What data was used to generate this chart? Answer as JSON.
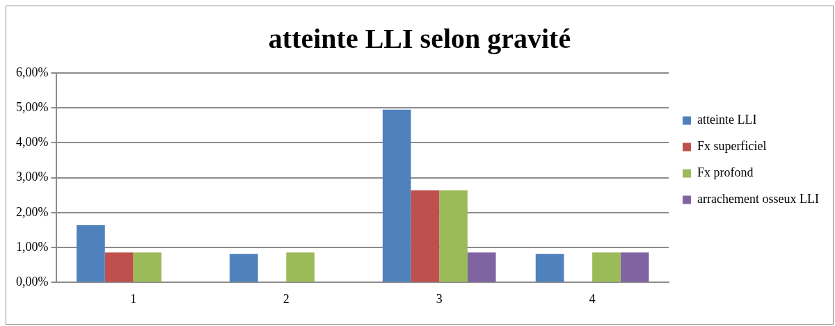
{
  "chart_data": {
    "type": "bar",
    "title": "atteinte LLI selon gravité",
    "categories": [
      "1",
      "2",
      "3",
      "4"
    ],
    "series": [
      {
        "name": "atteinte LLI",
        "color": "#4f81bd",
        "values": [
          1.64,
          0.82,
          4.95,
          0.82
        ]
      },
      {
        "name": "Fx superficiel",
        "color": "#c0504d",
        "values": [
          0.86,
          null,
          2.64,
          null
        ]
      },
      {
        "name": "Fx profond",
        "color": "#9bbb59",
        "values": [
          0.86,
          0.86,
          2.64,
          0.86
        ]
      },
      {
        "name": "arrachement osseux LLI",
        "color": "#8064a2",
        "values": [
          null,
          null,
          0.86,
          0.86
        ]
      }
    ],
    "ylim": [
      0,
      6
    ],
    "yticks": [
      {
        "value": 0,
        "label": "0,00%"
      },
      {
        "value": 1,
        "label": "1,00%"
      },
      {
        "value": 2,
        "label": "2,00%"
      },
      {
        "value": 3,
        "label": "3,00%"
      },
      {
        "value": 4,
        "label": "4,00%"
      },
      {
        "value": 5,
        "label": "5,00%"
      },
      {
        "value": 6,
        "label": "6,00%"
      }
    ],
    "grid": "y",
    "legend": "right"
  }
}
